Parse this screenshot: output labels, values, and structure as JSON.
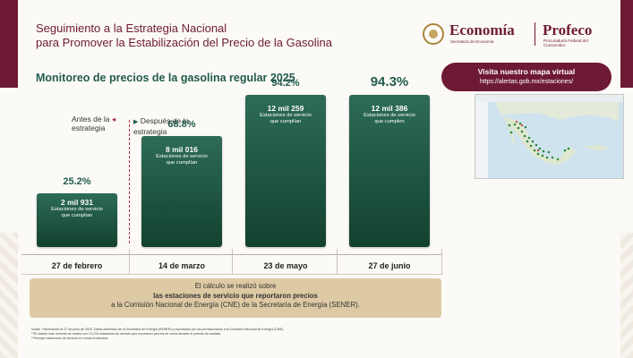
{
  "header": {
    "title_line1": "Seguimiento a la Estrategia Nacional",
    "title_line2": "para Promover la Estabilización del Precio de la Gasolina",
    "subtitle": "Monitoreo de precios de la gasolina regular 2025"
  },
  "logos": {
    "economia_name": "Economía",
    "economia_sub": "Secretaría de Economía",
    "profeco_name": "Profeco",
    "profeco_sub": "Procuraduría Federal del Consumidor"
  },
  "map_link": {
    "title": "Visita nuestro mapa virtual",
    "url": "https://alertas.gob.mx/estaciones/"
  },
  "markers": {
    "before_line1": "Antes de la",
    "before_line2": "estrategia",
    "after_line1": "Después de la",
    "after_line2": "estrategia"
  },
  "chart_data": {
    "type": "bar",
    "categories": [
      "27 de febrero",
      "14 de marzo",
      "23 de mayo",
      "27 de junio"
    ],
    "values": [
      25.2,
      68.8,
      94.2,
      94.3
    ],
    "value_labels": [
      "25.2%",
      "68.8%",
      "94.2%",
      "94.3%"
    ],
    "station_counts": [
      "2 mil 931",
      "8 mil 016",
      "12 mil 259",
      "12 mil 386"
    ],
    "station_label_line1": "Estaciones de servicio",
    "station_label_line2": [
      "que cumplían",
      "que cumplían",
      "que cumplían",
      "que cumplen"
    ],
    "ylim": [
      0,
      100
    ],
    "legend": "none",
    "grid": false
  },
  "note": {
    "line1": "El cálculo se realizó sobre",
    "line2": "las estaciones de servicio que reportaron precios",
    "line3": "a la Comisión Nacional de Energía (CNE) de la Secretaría de Energía (SENER)."
  },
  "footnotes": {
    "line1": "Notas: *Información al 27 de junio de 2025. Datos obtenidos de la Secretaría de Energía (SENER) y reportados por los permisionarios a la Comisión Nacional de Energía (CNE).",
    "line2": "**El cálculo más reciente se realizó con 13,134 estaciones de servicio que reportaron precios de venta durante el periodo de análisis.",
    "line3": "***Incluye estaciones de servicio en zonas fronterizas."
  },
  "colors": {
    "guinda": "#6e1a35",
    "green": "#235b4e",
    "bar_dark": "#13412f",
    "note_bg": "#ddc9a3"
  }
}
